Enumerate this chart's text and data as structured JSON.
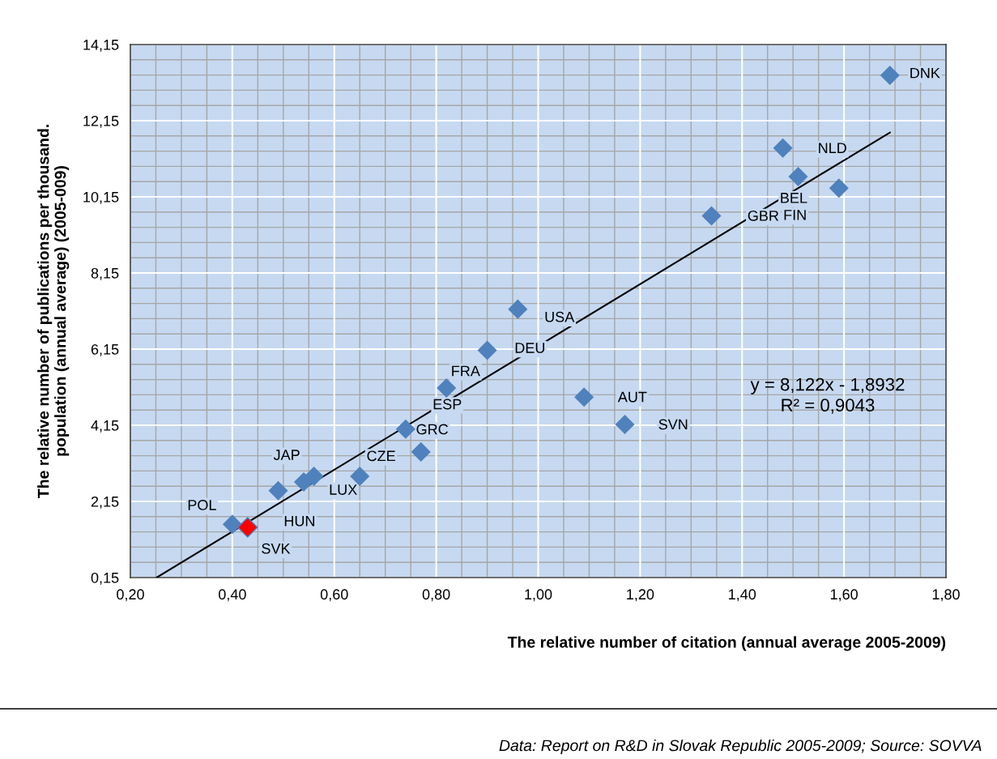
{
  "chart_data": {
    "type": "scatter",
    "xlabel": "The relative number of citation (annual average 2005-2009)",
    "ylabel": "The relative number of publications per thousand.\npopulation (annual average) (2005-009)",
    "xlim": [
      0.2,
      1.8
    ],
    "xticks": [
      {
        "value": 0.2,
        "label": "0,20"
      },
      {
        "value": 0.4,
        "label": "0,40"
      },
      {
        "value": 0.6,
        "label": "0,60"
      },
      {
        "value": 0.8,
        "label": "0,80"
      },
      {
        "value": 1.0,
        "label": "1,00"
      },
      {
        "value": 1.2,
        "label": "1,20"
      },
      {
        "value": 1.4,
        "label": "1,40"
      },
      {
        "value": 1.6,
        "label": "1,60"
      },
      {
        "value": 1.8,
        "label": "1,80"
      }
    ],
    "ylim": [
      0.15,
      14.15
    ],
    "yticks": [
      {
        "value": 0.15,
        "label": "0,15"
      },
      {
        "value": 2.15,
        "label": "2,15"
      },
      {
        "value": 4.15,
        "label": "4,15"
      },
      {
        "value": 6.15,
        "label": "6,15"
      },
      {
        "value": 8.15,
        "label": "8,15"
      },
      {
        "value": 10.15,
        "label": "10,15"
      },
      {
        "value": 12.15,
        "label": "12,15"
      },
      {
        "value": 14.15,
        "label": "14,15"
      }
    ],
    "grid": true,
    "marker": "diamond",
    "series": [
      {
        "type": "scatter",
        "color": "#4f81bd",
        "x": [
          0.4,
          0.43,
          0.49,
          0.54,
          0.56,
          0.65,
          0.74,
          0.77,
          0.82,
          0.9,
          0.96,
          1.09,
          1.17,
          1.34,
          1.48,
          1.51,
          1.59,
          1.69
        ],
        "values": [
          1.55,
          1.47,
          2.43,
          2.66,
          2.81,
          2.81,
          4.05,
          3.45,
          5.13,
          6.12,
          7.2,
          4.89,
          4.17,
          9.65,
          11.43,
          10.68,
          10.38,
          13.34
        ],
        "colors": [
          "#4f81bd",
          "#ff0000",
          "#4f81bd",
          "#4f81bd",
          "#4f81bd",
          "#4f81bd",
          "#4f81bd",
          "#4f81bd",
          "#4f81bd",
          "#4f81bd",
          "#4f81bd",
          "#4f81bd",
          "#4f81bd",
          "#4f81bd",
          "#4f81bd",
          "#4f81bd",
          "#4f81bd",
          "#4f81bd"
        ]
      },
      {
        "type": "line",
        "color": "#000000",
        "marker": "none",
        "x": [
          0.2516,
          1.69
        ],
        "values": [
          0.15,
          11.84
        ]
      }
    ],
    "annotations": [
      {
        "text": "POL",
        "x": 0.4,
        "y": 1.55
      },
      {
        "text": "SVK",
        "x": 0.43,
        "y": 1.47
      },
      {
        "text": "HUN",
        "x": 0.49,
        "y": 2.43
      },
      {
        "text": "JAP",
        "x": 0.54,
        "y": 2.66
      },
      {
        "text": "LUX",
        "x": 0.56,
        "y": 2.81
      },
      {
        "text": "CZE",
        "x": 0.65,
        "y": 2.81
      },
      {
        "text": "ESP",
        "x": 0.74,
        "y": 4.05
      },
      {
        "text": "GRC",
        "x": 0.77,
        "y": 3.45
      },
      {
        "text": "FRA",
        "x": 0.82,
        "y": 5.13
      },
      {
        "text": "DEU",
        "x": 0.9,
        "y": 6.12
      },
      {
        "text": "USA",
        "x": 0.96,
        "y": 7.2
      },
      {
        "text": "AUT",
        "x": 1.09,
        "y": 4.89
      },
      {
        "text": "SVN",
        "x": 1.17,
        "y": 4.17
      },
      {
        "text": "GBR",
        "x": 1.34,
        "y": 9.65
      },
      {
        "text": "NLD",
        "x": 1.48,
        "y": 11.43
      },
      {
        "text": "BEL",
        "x": 1.51,
        "y": 10.68
      },
      {
        "text": "FIN",
        "x": 1.59,
        "y": 10.38
      },
      {
        "text": "DNK",
        "x": 1.69,
        "y": 13.34
      },
      "y = 8,122x - 1,8932\nR² = 0,9043",
      "Data: Report on R&D in Slovak Republic 2005-2009; Source: SOVVA"
    ]
  }
}
